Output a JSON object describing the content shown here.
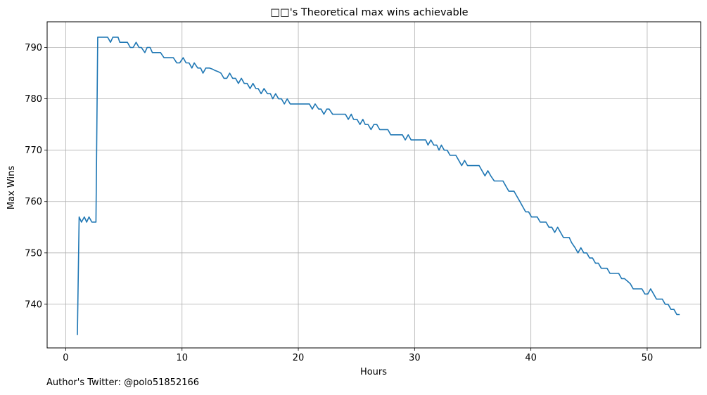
{
  "chart_data": {
    "type": "line",
    "title": "□□'s Theoretical max wins achievable",
    "xlabel": "Hours",
    "ylabel": "Max Wins",
    "xlim": [
      -1.6,
      54.6
    ],
    "ylim": [
      731.5,
      795.0
    ],
    "xticks": [
      0,
      10,
      20,
      30,
      40,
      50
    ],
    "yticks": [
      740,
      750,
      760,
      770,
      780,
      790
    ],
    "grid": true,
    "legend": "none",
    "line_color": "#1f77b4",
    "series": [
      {
        "x": [
          1.0,
          1.15,
          1.35,
          1.6,
          1.8,
          2.0,
          2.25,
          2.45,
          2.6,
          2.75,
          2.95,
          3.05,
          3.3,
          3.6,
          3.85,
          4.05,
          4.3,
          4.5,
          4.65,
          4.85,
          5.05,
          5.3,
          5.55,
          5.8,
          6.05,
          6.3,
          6.5,
          6.8,
          7.0,
          7.25,
          7.45,
          7.65,
          7.85,
          8.15,
          8.45,
          8.7,
          8.95,
          9.25,
          9.55,
          9.8,
          10.1,
          10.35,
          10.6,
          10.85,
          11.05,
          11.35,
          11.6,
          11.8,
          12.05,
          12.35,
          12.6,
          12.85,
          13.1,
          13.35,
          13.6,
          13.85,
          14.1,
          14.35,
          14.6,
          14.85,
          15.1,
          15.35,
          15.6,
          15.85,
          16.1,
          16.35,
          16.55,
          16.8,
          17.05,
          17.35,
          17.6,
          17.8,
          18.05,
          18.3,
          18.55,
          18.8,
          19.05,
          19.3,
          19.55,
          19.8,
          20.05,
          20.35,
          20.65,
          20.95,
          21.2,
          21.45,
          21.75,
          21.95,
          22.2,
          22.45,
          22.65,
          22.95,
          23.25,
          23.55,
          23.8,
          24.05,
          24.3,
          24.55,
          24.75,
          25.05,
          25.3,
          25.55,
          25.75,
          26.0,
          26.25,
          26.5,
          26.75,
          27.0,
          27.25,
          27.5,
          27.7,
          27.95,
          28.2,
          28.45,
          28.7,
          28.95,
          29.2,
          29.45,
          29.7,
          29.95,
          30.2,
          30.45,
          30.7,
          30.95,
          31.15,
          31.4,
          31.65,
          31.9,
          32.1,
          32.3,
          32.55,
          32.8,
          33.05,
          33.3,
          33.55,
          33.8,
          34.05,
          34.3,
          34.55,
          34.85,
          35.1,
          35.3,
          35.55,
          35.8,
          36.05,
          36.3,
          36.55,
          36.85,
          37.1,
          37.35,
          37.6,
          37.85,
          38.1,
          38.3,
          38.55,
          38.8,
          39.05,
          39.3,
          39.55,
          39.8,
          40.05,
          40.3,
          40.55,
          40.8,
          41.05,
          41.3,
          41.55,
          41.8,
          42.05,
          42.3,
          42.55,
          42.8,
          43.05,
          43.3,
          43.5,
          43.8,
          44.05,
          44.3,
          44.55,
          44.8,
          45.05,
          45.3,
          45.55,
          45.8,
          46.05,
          46.3,
          46.55,
          46.8,
          47.05,
          47.3,
          47.55,
          47.8,
          48.05,
          48.3,
          48.55,
          48.8,
          49.05,
          49.3,
          49.55,
          49.8,
          50.05,
          50.3,
          50.55,
          50.8,
          51.05,
          51.3,
          51.55,
          51.8,
          52.05,
          52.3,
          52.55,
          52.8
        ],
        "y": [
          734,
          757,
          756,
          757,
          756,
          757,
          756,
          756,
          756,
          792,
          792,
          792,
          792,
          792,
          791,
          792,
          792,
          792,
          791,
          791,
          791,
          791,
          790,
          790,
          791,
          790,
          790,
          789,
          790,
          790,
          789,
          789,
          789,
          789,
          788,
          788,
          788,
          788,
          787,
          787,
          788,
          787,
          787,
          786,
          787,
          786,
          786,
          785,
          786,
          786,
          785.8,
          785.5,
          785.3,
          785,
          784,
          784,
          785,
          784,
          784,
          783,
          784,
          783,
          783,
          782,
          783,
          782,
          782,
          781,
          782,
          781,
          781,
          780,
          781,
          780,
          780,
          779,
          780,
          779,
          779,
          779,
          779,
          779,
          779,
          779,
          778,
          779,
          778,
          778,
          777,
          778,
          778,
          777,
          777,
          777,
          777,
          777,
          776,
          777,
          776,
          776,
          775,
          776,
          775,
          775,
          774,
          775,
          775,
          774,
          774,
          774,
          774,
          773,
          773,
          773,
          773,
          773,
          772,
          773,
          772,
          772,
          772,
          772,
          772,
          772,
          771,
          772,
          771,
          771,
          770,
          771,
          770,
          770,
          769,
          769,
          769,
          768,
          767,
          768,
          767,
          767,
          767,
          767,
          767,
          766,
          765,
          766,
          765,
          764,
          764,
          764,
          764,
          763,
          762,
          762,
          762,
          761,
          760,
          759,
          758,
          758,
          757,
          757,
          757,
          756,
          756,
          756,
          755,
          755,
          754,
          755,
          754,
          753,
          753,
          753,
          752,
          751,
          750,
          751,
          750,
          750,
          749,
          749,
          748,
          748,
          747,
          747,
          747,
          746,
          746,
          746,
          746,
          745,
          745,
          744.5,
          744,
          743,
          743,
          743,
          743,
          742,
          742,
          743,
          742,
          741,
          741,
          741,
          740,
          740,
          739,
          739,
          738,
          738
        ]
      }
    ]
  },
  "footer": "Author's Twitter: @polo51852166"
}
